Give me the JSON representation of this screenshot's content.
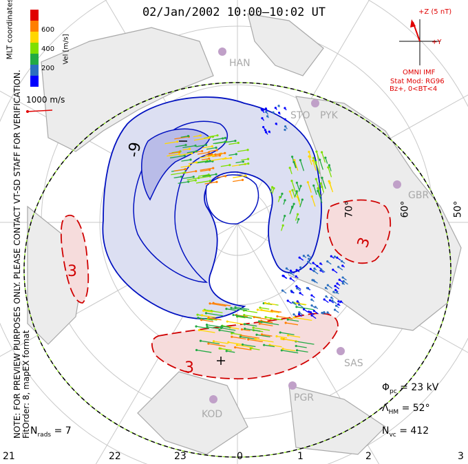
{
  "title": "02/Jan/2002 10:00–10:02 UT",
  "side_note_line1": "NOTE: FOR PREVIEW PURPOSES ONLY. PLEASE CONTACT VT-SD STAFF FOR VERIFICATION.",
  "side_note_line2": "FitOrder: 8, mapEX format",
  "coords_label": "MLT coordinates",
  "colorbar": {
    "label": "Vel [m/s]",
    "ticks": [
      "600",
      "400",
      "200"
    ],
    "colors": [
      "#e00000",
      "#ff7f00",
      "#ffd700",
      "#7fdf00",
      "#22aa44",
      "#2b6fbf",
      "#0000ff"
    ]
  },
  "scale_label": "1000 m/s",
  "imf": {
    "axis_z": "+Z (5 nT)",
    "axis_y": "+Y",
    "source": "OMNI IMF",
    "model": "Stat Mod: RG96",
    "condition": "Bz+, 0<BT<4"
  },
  "stats": {
    "phi_symbol": "Φ",
    "phi_sub": "pc",
    "phi_value": "= 23 kV",
    "lambda_symbol": "Λ",
    "lambda_sub": "HM",
    "lambda_value": "= 52°",
    "n_symbol": "N",
    "n_sub": "vc",
    "n_value": "= 412",
    "nrads_symbol": "N",
    "nrads_sub": "rads",
    "nrads_value": "= 7"
  },
  "mlt_labels": [
    "21",
    "22",
    "23",
    "0",
    "1",
    "2",
    "3"
  ],
  "lat_labels": [
    "70°",
    "60°",
    "50°"
  ],
  "stations": [
    "HAN",
    "STO",
    "PYK",
    "GBR",
    "SAS",
    "PGR",
    "KOD"
  ],
  "contours": {
    "neg": "-9",
    "pos": "3",
    "pos2": "3",
    "pos3": "3"
  },
  "colors": {
    "neg_fill": "#dcdff2",
    "neg_fill_core": "#b9bce8",
    "pos_fill": "#f6dcdc",
    "neg_line": "#0010c0",
    "pos_line": "#d00000",
    "grid": "#c8c8c8",
    "land": "#ececec",
    "coast": "#a8a8a8"
  }
}
